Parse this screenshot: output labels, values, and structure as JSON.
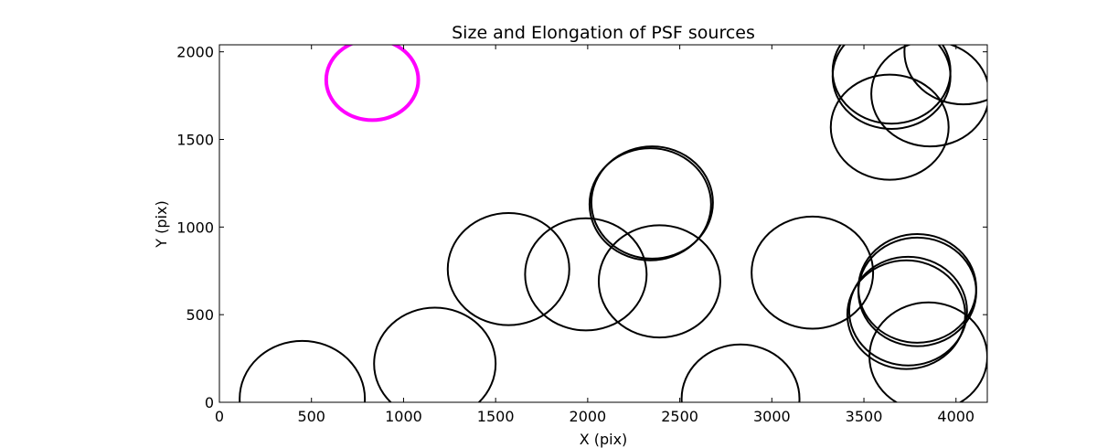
{
  "chart_data": {
    "type": "scatter",
    "title": "Size and Elongation of PSF sources",
    "xlabel": "X (pix)",
    "ylabel": "Y (pix)",
    "xlim": [
      0,
      4170
    ],
    "ylim": [
      0,
      2040
    ],
    "xticks": [
      0,
      500,
      1000,
      1500,
      2000,
      2500,
      3000,
      3500,
      4000
    ],
    "yticks": [
      0,
      500,
      1000,
      1500,
      2000
    ],
    "grid": false,
    "legend": "none",
    "highlight_color": "#ff00ff",
    "default_color": "#000000",
    "ellipses": [
      {
        "x": 830,
        "y": 1840,
        "width": 500,
        "height": 460,
        "angle": 0,
        "highlight": true
      },
      {
        "x": 4040,
        "y": 2000,
        "width": 640,
        "height": 600,
        "angle": 0,
        "highlight": false
      },
      {
        "x": 3650,
        "y": 1860,
        "width": 640,
        "height": 600,
        "angle": 0,
        "highlight": false
      },
      {
        "x": 3650,
        "y": 1890,
        "width": 640,
        "height": 600,
        "angle": 0,
        "highlight": false
      },
      {
        "x": 3860,
        "y": 1760,
        "width": 640,
        "height": 600,
        "angle": 0,
        "highlight": false
      },
      {
        "x": 3640,
        "y": 1570,
        "width": 640,
        "height": 600,
        "angle": 0,
        "highlight": false
      },
      {
        "x": 2340,
        "y": 1130,
        "width": 660,
        "height": 640,
        "angle": 0,
        "highlight": false
      },
      {
        "x": 2350,
        "y": 1140,
        "width": 660,
        "height": 640,
        "angle": 0,
        "highlight": false
      },
      {
        "x": 1570,
        "y": 760,
        "width": 660,
        "height": 640,
        "angle": 0,
        "highlight": false
      },
      {
        "x": 1990,
        "y": 730,
        "width": 660,
        "height": 640,
        "angle": 0,
        "highlight": false
      },
      {
        "x": 2390,
        "y": 690,
        "width": 660,
        "height": 640,
        "angle": 0,
        "highlight": false
      },
      {
        "x": 3220,
        "y": 740,
        "width": 660,
        "height": 640,
        "angle": 0,
        "highlight": false
      },
      {
        "x": 3790,
        "y": 650,
        "width": 640,
        "height": 620,
        "angle": 0,
        "highlight": false
      },
      {
        "x": 3790,
        "y": 630,
        "width": 640,
        "height": 620,
        "angle": 0,
        "highlight": false
      },
      {
        "x": 3730,
        "y": 500,
        "width": 640,
        "height": 620,
        "angle": 0,
        "highlight": false
      },
      {
        "x": 3740,
        "y": 520,
        "width": 640,
        "height": 620,
        "angle": 0,
        "highlight": false
      },
      {
        "x": 3850,
        "y": 260,
        "width": 640,
        "height": 620,
        "angle": 0,
        "highlight": false
      },
      {
        "x": 1170,
        "y": 220,
        "width": 660,
        "height": 640,
        "angle": 0,
        "highlight": false
      },
      {
        "x": 450,
        "y": 20,
        "width": 680,
        "height": 660,
        "angle": 0,
        "highlight": false
      },
      {
        "x": 2830,
        "y": 20,
        "width": 640,
        "height": 620,
        "angle": 0,
        "highlight": false
      }
    ]
  }
}
